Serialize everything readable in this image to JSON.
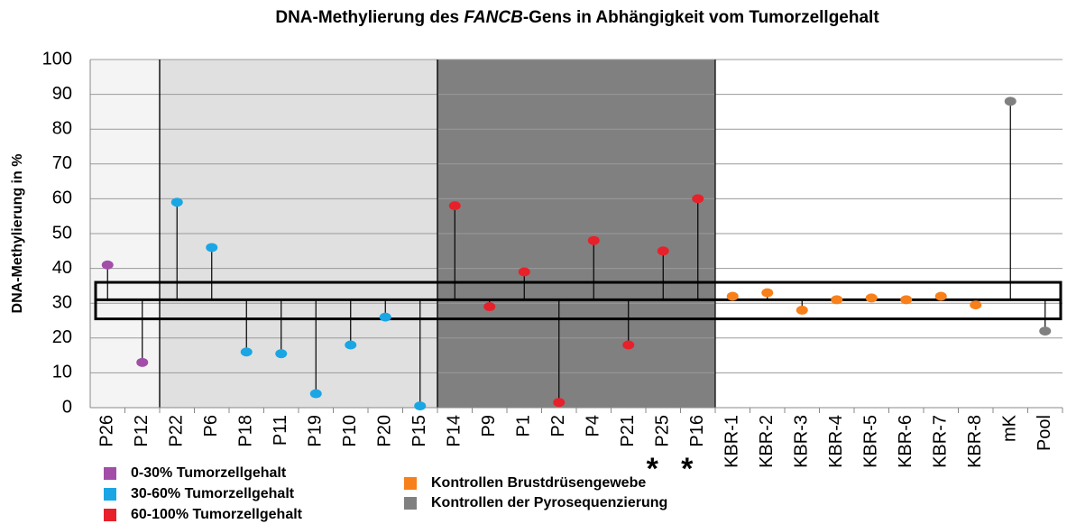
{
  "chart_data": {
    "type": "lollipop",
    "title_parts": [
      "DNA-Methylierung des ",
      "FANCB",
      "-Gens in Abhängigkeit vom Tumorzellgehalt"
    ],
    "y_label": "DNA-Methylierung in %",
    "categories": [
      "P26",
      "P12",
      "P22",
      "P6",
      "P18",
      "P11",
      "P19",
      "P10",
      "P20",
      "P15",
      "P14",
      "P9",
      "P1",
      "P2",
      "P4",
      "P21",
      "P25",
      "P16",
      "KBR-1",
      "KBR-2",
      "KBR-3",
      "KBR-4",
      "KBR-5",
      "KBR-6",
      "KBR-7",
      "KBR-8",
      "mK",
      "Pool"
    ],
    "values": [
      41,
      13,
      59,
      46,
      16,
      15.5,
      4,
      18,
      26,
      0.5,
      58,
      29,
      39,
      1.5,
      48,
      18,
      45,
      60,
      32,
      33,
      28,
      31,
      31.5,
      31,
      32,
      29.5,
      88,
      22
    ],
    "colors": [
      "#a24ea8",
      "#a24ea8",
      "#1aa6e4",
      "#1aa6e4",
      "#1aa6e4",
      "#1aa6e4",
      "#1aa6e4",
      "#1aa6e4",
      "#1aa6e4",
      "#1aa6e4",
      "#e8202a",
      "#e8202a",
      "#e8202a",
      "#e8202a",
      "#e8202a",
      "#e8202a",
      "#e8202a",
      "#e8202a",
      "#f7801a",
      "#f7801a",
      "#f7801a",
      "#f7801a",
      "#f7801a",
      "#f7801a",
      "#f7801a",
      "#f7801a",
      "#808080",
      "#808080"
    ],
    "baseline": 31,
    "band": [
      25.5,
      36
    ],
    "regions": [
      {
        "from": 0,
        "to": 2,
        "color": "#f4f4f4"
      },
      {
        "from": 2,
        "to": 10,
        "color": "#e0e0e0"
      },
      {
        "from": 10,
        "to": 18,
        "color": "#808080"
      }
    ],
    "annotations": [
      {
        "index": 16,
        "text": "*"
      },
      {
        "index": 17,
        "text": "*"
      }
    ],
    "ylim": [
      0,
      100
    ],
    "yticks": [
      0,
      10,
      20,
      30,
      40,
      50,
      60,
      70,
      80,
      90,
      100
    ],
    "grid": true,
    "legend": [
      {
        "name": "0-30% Tumorzellgehalt",
        "color": "#a24ea8"
      },
      {
        "name": "30-60% Tumorzellgehalt",
        "color": "#1aa6e4"
      },
      {
        "name": "60-100% Tumorzellgehalt",
        "color": "#e8202a"
      },
      {
        "name": "Kontrollen Brustdrüsengewebe",
        "color": "#f7801a"
      },
      {
        "name": "Kontrollen der Pyrosequenzierung",
        "color": "#808080"
      }
    ]
  }
}
